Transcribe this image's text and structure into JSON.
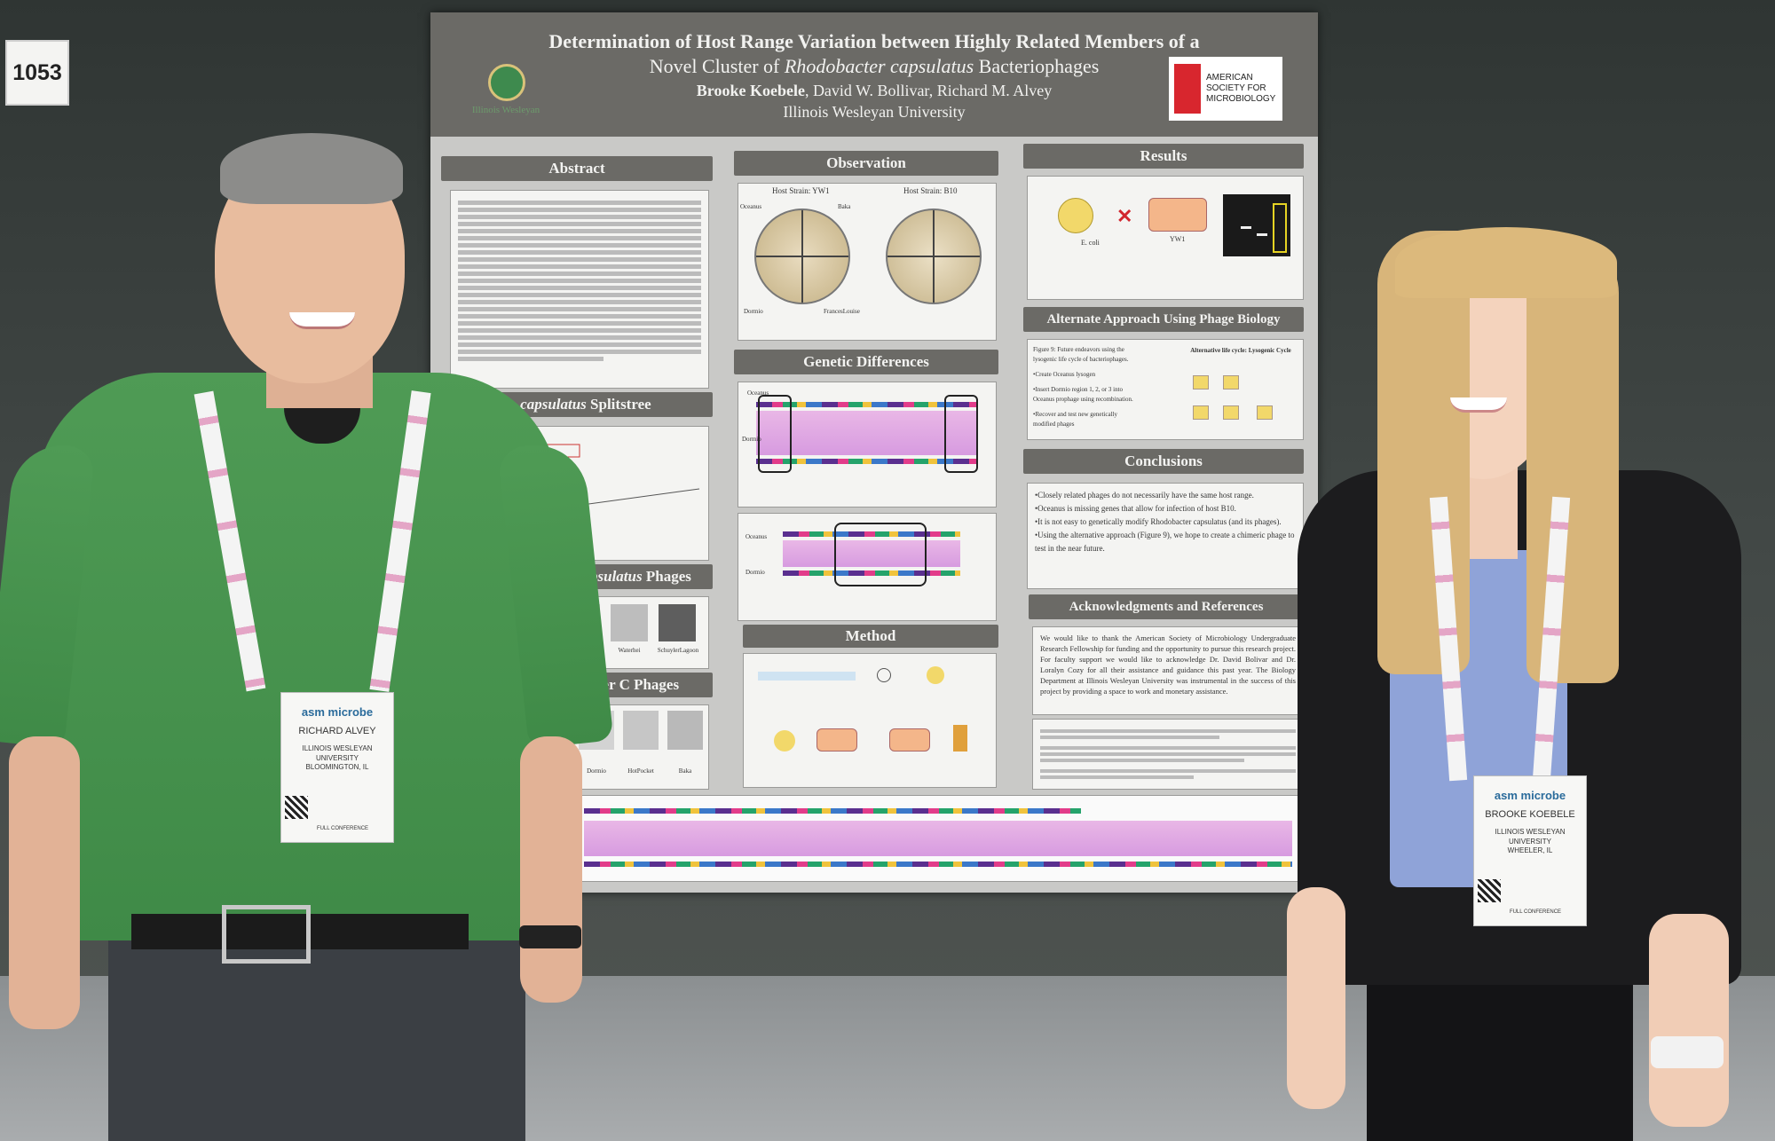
{
  "booth": {
    "number": "1053"
  },
  "poster": {
    "title_line1": "Determination of Host Range Variation between Highly Related Members of a",
    "title_line2_pre": "Novel Cluster of ",
    "title_line2_italic": "Rhodobacter capsulatus",
    "title_line2_post": " Bacteriophages",
    "authors_bold": "Brooke Koebele",
    "authors_rest": ", David W. Bollivar, Richard M. Alvey",
    "institution": "Illinois Wesleyan University",
    "iwu_logo_text": "Illinois Wesleyan",
    "asm_logo_text": "AMERICAN SOCIETY FOR MICROBIOLOGY",
    "sections": {
      "abstract": "Abstract",
      "splitstree_italic": "R. capsulatus",
      "splitstree_rest": " Splitstree",
      "phages_italic": "R. capsulatus",
      "phages_rest": " Phages",
      "clusterc": "ter C Phages",
      "observation": "Observation",
      "genetic": "Genetic Differences",
      "method": "Method",
      "results": "Results",
      "alternate": "Alternate Approach Using Phage Biology",
      "conclusions": "Conclusions",
      "acknowledgments": "Acknowledgments and References"
    },
    "observation": {
      "strain_left": "Host Strain: YW1",
      "strain_right": "Host Strain: B10",
      "plate_labels": [
        "Oceanus",
        "Baka",
        "Dormio",
        "FrancesLouise"
      ]
    },
    "genetic": {
      "label_top": "Oceanus",
      "label_bottom": "Dormio"
    },
    "phages": {
      "names": [
        "per",
        "Waterhei",
        "SchuylerLagoon"
      ]
    },
    "clusterc": {
      "names": [
        "Dormio",
        "HotPocket",
        "Baka"
      ]
    },
    "results": {
      "label_ecoli": "E. coli",
      "label_yw1": "YW1"
    },
    "alternate": {
      "lines": [
        "Figure 9: Future endeavors using the",
        "lysogenic life cycle of bacteriophages.",
        "•Create Oceanus lysogen",
        "•Insert Dormio region 1, 2, or 3 into",
        "Oceanus prophage using recombination.",
        "•Recover and test new genetically",
        "modified phages"
      ],
      "cycle_title": "Alternative life cycle: Lysogenic Cycle"
    },
    "conclusions": [
      "•Closely related phages do not necessarily have the same host range.",
      "•Oceanus is missing genes that allow for infection of host B10.",
      "•It is not easy to genetically modify Rhodobacter capsulatus (and its phages).",
      "•Using the alternative approach (Figure 9), we hope to create a chimeric phage to test in the near future."
    ],
    "acknowledgments": "We would like to thank the American Society of Microbiology Undergraduate Research Fellowship for funding and the opportunity to pursue this research project. For faculty support we would like to acknowledge Dr. David Bolivar and Dr. Loralyn Cozy for all their assistance and guidance this past year. The Biology Department at Illinois Wesleyan University was instrumental in the success of this project by providing a space to work and monetary assistance."
  },
  "badges": {
    "left": {
      "name": "RICHARD ALVEY",
      "org": "ILLINOIS WESLEYAN UNIVERSITY",
      "city": "BLOOMINGTON, IL",
      "event": "asm microbe",
      "footer": "FULL CONFERENCE"
    },
    "right": {
      "name": "BROOKE KOEBELE",
      "org": "ILLINOIS WESLEYAN UNIVERSITY",
      "city": "WHEELER, IL",
      "event": "asm microbe",
      "footer": "FULL CONFERENCE"
    }
  },
  "colors": {
    "poster_header": "#6b6a66",
    "shirt": "#4a9650",
    "blouse": "#8fa3d8",
    "jacket": "#1c1c1e"
  }
}
